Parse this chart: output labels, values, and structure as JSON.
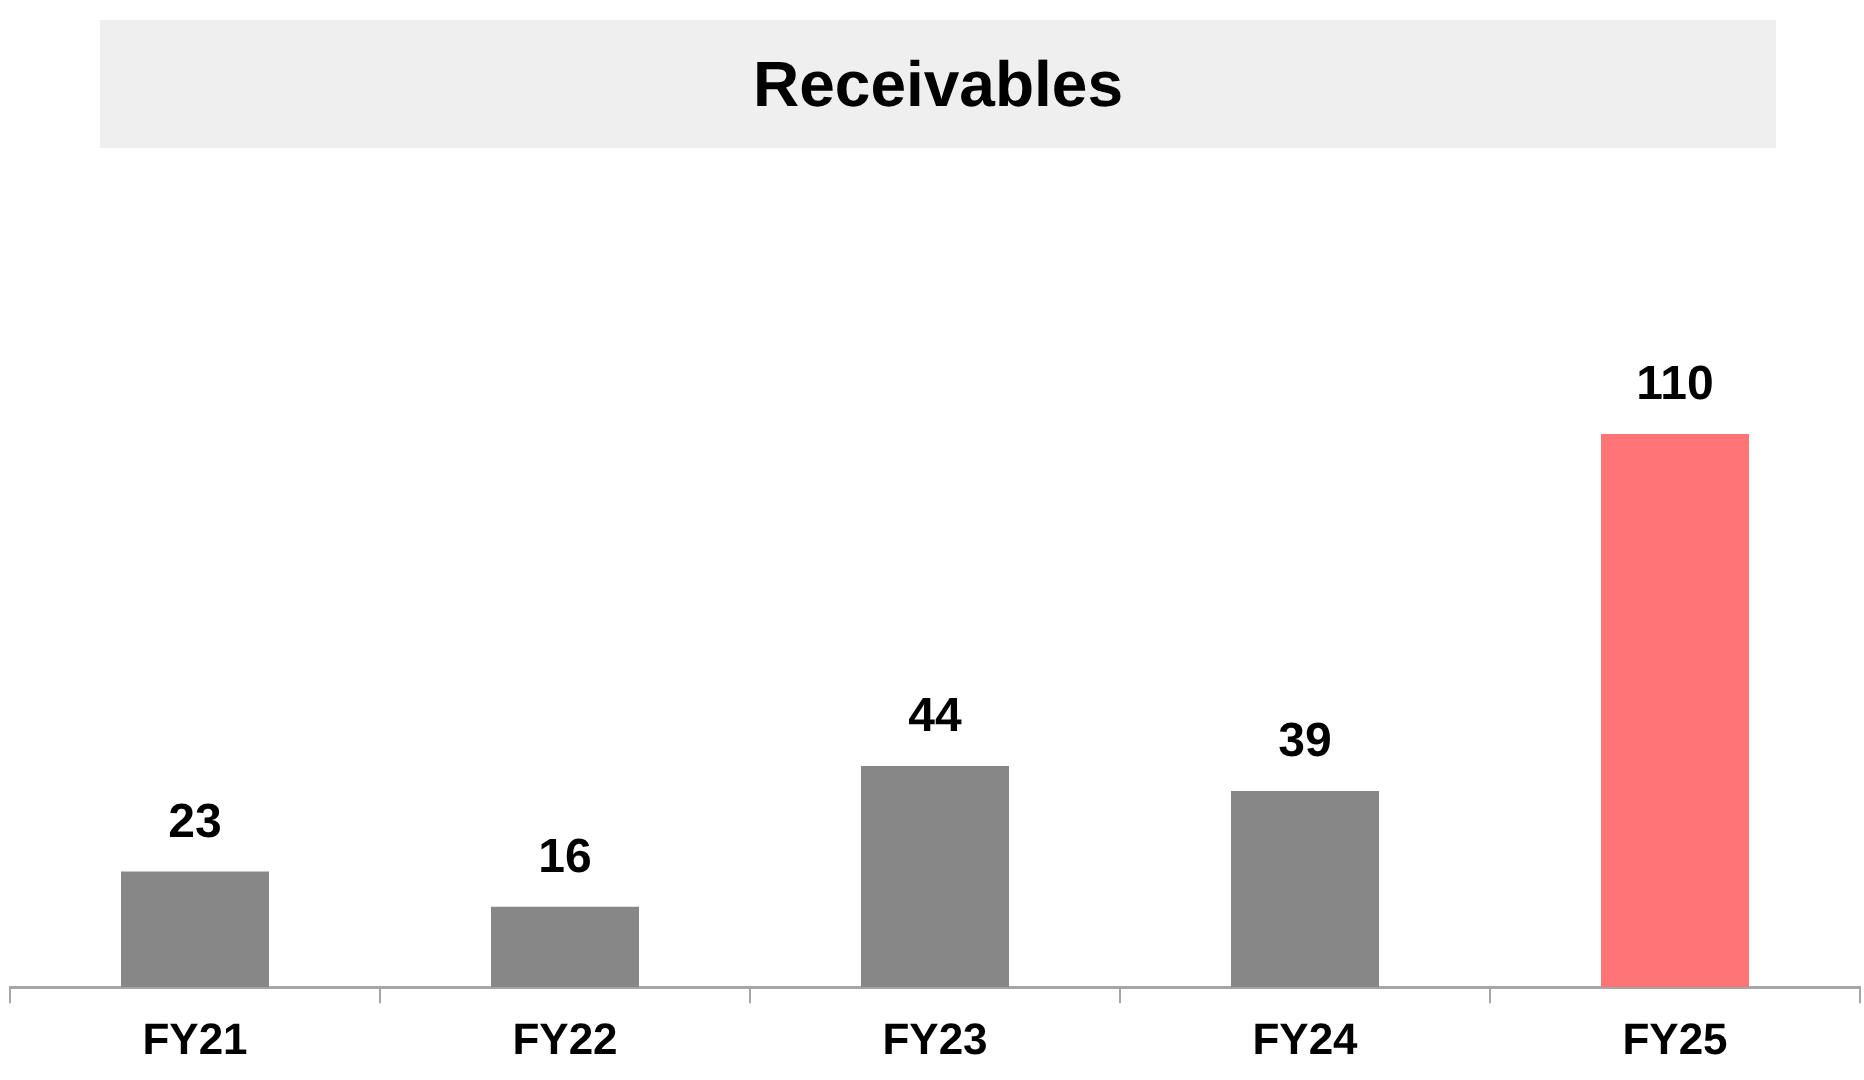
{
  "chart_data": {
    "type": "bar",
    "title": "Receivables",
    "categories": [
      "FY21",
      "FY22",
      "FY23",
      "FY24",
      "FY25"
    ],
    "values": [
      23,
      16,
      44,
      39,
      110
    ],
    "colors": [
      "#878787",
      "#878787",
      "#878787",
      "#878787",
      "#ff7575"
    ],
    "data_labels": true,
    "grid": false,
    "legend": false
  }
}
